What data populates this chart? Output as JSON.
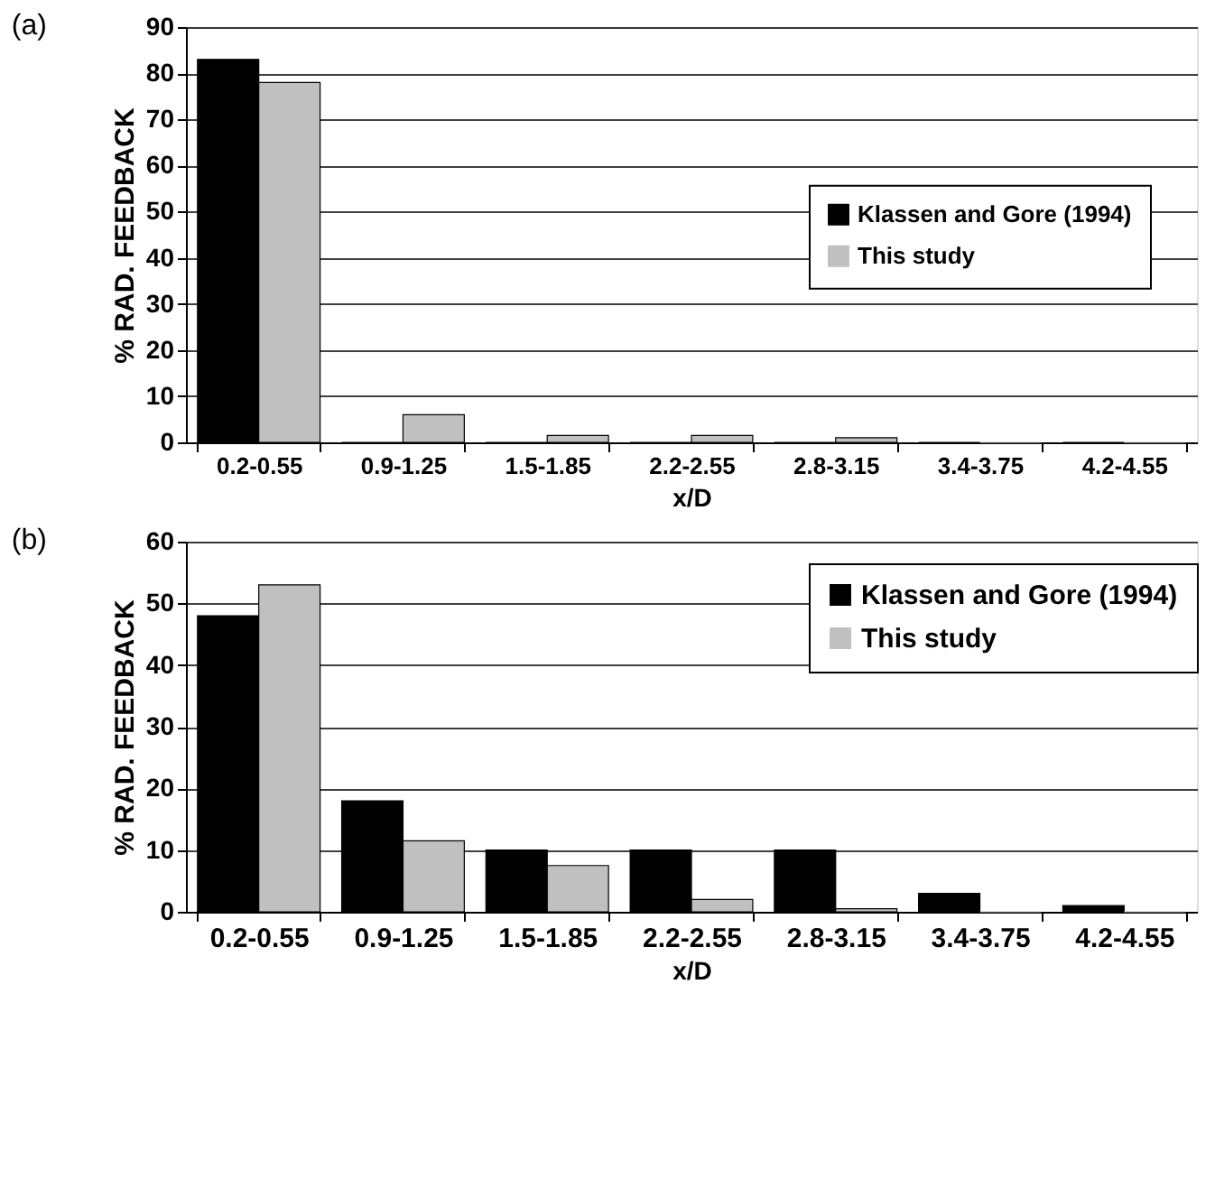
{
  "chart_data": [
    {
      "type": "bar",
      "title": "(a)",
      "xlabel": "x/D",
      "ylabel": "% RAD. FEEDBACK",
      "categories": [
        "0.2-0.55",
        "0.9-1.25",
        "1.5-1.85",
        "2.2-2.55",
        "2.8-3.15",
        "3.4-3.75",
        "4.2-4.55"
      ],
      "series": [
        {
          "name": "Klassen and Gore (1994)",
          "color": "#000000",
          "values": [
            83,
            0,
            0,
            0,
            0,
            0,
            0
          ]
        },
        {
          "name": "This study",
          "color": "#c0c0c0",
          "values": [
            78,
            6,
            1.5,
            1.5,
            1,
            0,
            0
          ]
        }
      ],
      "ylim": [
        0,
        90
      ],
      "yticks": [
        0,
        10,
        20,
        30,
        40,
        50,
        60,
        70,
        80,
        90
      ],
      "grid": "y",
      "legend": "right"
    },
    {
      "type": "bar",
      "title": "(b)",
      "xlabel": "x/D",
      "ylabel": "% RAD. FEEDBACK",
      "categories": [
        "0.2-0.55",
        "0.9-1.25",
        "1.5-1.85",
        "2.2-2.55",
        "2.8-3.15",
        "3.4-3.75",
        "4.2-4.55"
      ],
      "series": [
        {
          "name": "Klassen and Gore (1994)",
          "color": "#000000",
          "values": [
            48,
            18,
            10,
            10,
            10,
            3,
            1
          ]
        },
        {
          "name": "This study",
          "color": "#c0c0c0",
          "values": [
            53,
            11.5,
            7.5,
            2,
            0.5,
            0,
            0
          ]
        }
      ],
      "ylim": [
        0,
        60
      ],
      "yticks": [
        0,
        10,
        20,
        30,
        40,
        50,
        60
      ],
      "grid": "y",
      "legend": "top right"
    }
  ]
}
